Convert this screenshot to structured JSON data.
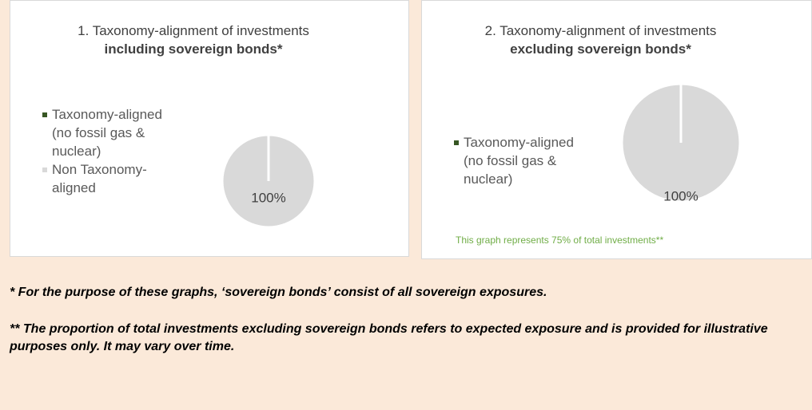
{
  "chart_data": [
    {
      "type": "pie",
      "title": "1. Taxonomy-alignment of investments",
      "subtitle": "including sovereign bonds*",
      "categories": [
        "Taxonomy-aligned (no fossil gas & nuclear)",
        "Non Taxonomy-aligned"
      ],
      "values": [
        0,
        100
      ],
      "value_labels": [
        null,
        "100%"
      ],
      "colors": [
        "#375623",
        "#d9d9d9"
      ]
    },
    {
      "type": "pie",
      "title": "2. Taxonomy-alignment of investments",
      "subtitle": "excluding sovereign bonds*",
      "categories": [
        "Taxonomy-aligned (no fossil gas & nuclear)",
        null
      ],
      "values": [
        0,
        100
      ],
      "value_labels": [
        null,
        "100%"
      ],
      "colors": [
        "#375623",
        "#d9d9d9"
      ],
      "annotation": "This graph represents 75% of total investments**"
    }
  ],
  "notes": [
    "*  For the purpose of these graphs, ‘sovereign bonds’ consist of all sovereign exposures.",
    "** The proportion of total investments excluding sovereign bonds refers to expected exposure and is provided for illustrative purposes only. It may vary over time."
  ]
}
